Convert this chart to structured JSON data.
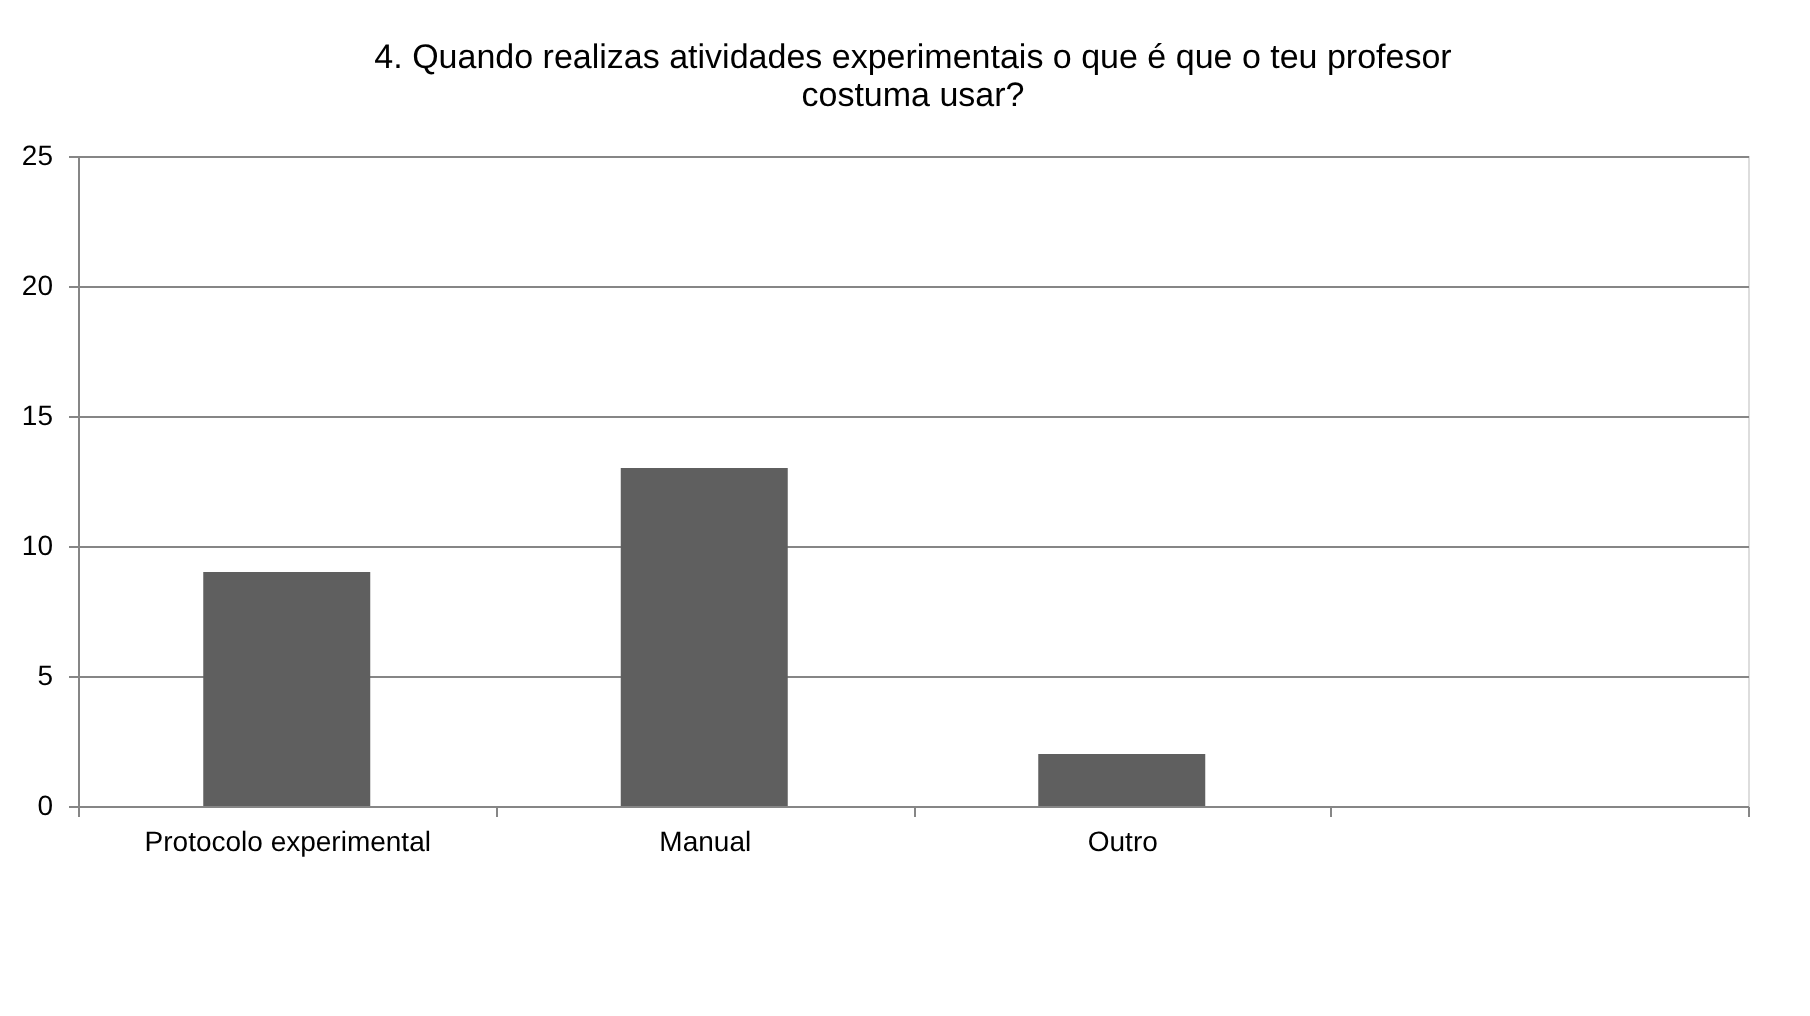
{
  "chart_data": {
    "type": "bar",
    "title": [
      "4. Quando realizas atividades experimentais o que é que o teu profesor",
      "costuma usar?"
    ],
    "categories": [
      "Protocolo experimental",
      "Manual",
      "Outro",
      null
    ],
    "values": [
      9,
      13,
      2,
      null
    ],
    "color": "#5f5f5f",
    "ylim": [
      0,
      25
    ],
    "yticks": [
      0,
      5,
      10,
      15,
      20,
      25
    ],
    "grid": "y"
  }
}
